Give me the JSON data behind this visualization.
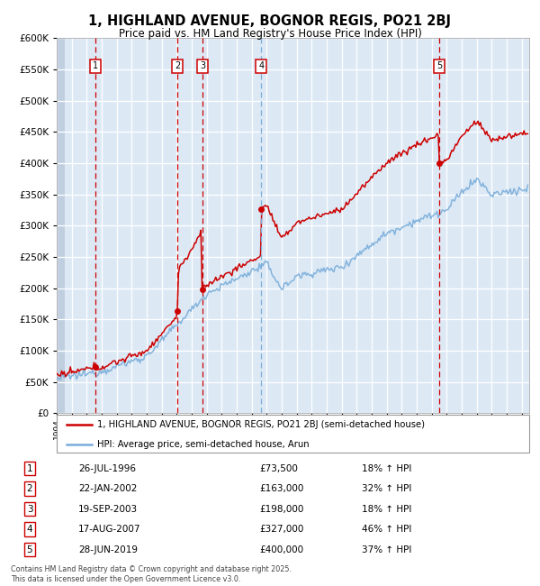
{
  "title_line1": "1, HIGHLAND AVENUE, BOGNOR REGIS, PO21 2BJ",
  "title_line2": "Price paid vs. HM Land Registry's House Price Index (HPI)",
  "sale_points": [
    {
      "num": 1,
      "year": 1996.57,
      "price": 73500,
      "dash_style": "red"
    },
    {
      "num": 2,
      "year": 2002.06,
      "price": 163000,
      "dash_style": "red"
    },
    {
      "num": 3,
      "year": 2003.72,
      "price": 198000,
      "dash_style": "red"
    },
    {
      "num": 4,
      "year": 2007.63,
      "price": 327000,
      "dash_style": "blue"
    },
    {
      "num": 5,
      "year": 2019.49,
      "price": 400000,
      "dash_style": "red"
    }
  ],
  "label_row": [
    {
      "num": 1,
      "date": "26-JUL-1996",
      "price": "£73,500",
      "hpi": "18% ↑ HPI"
    },
    {
      "num": 2,
      "date": "22-JAN-2002",
      "price": "£163,000",
      "hpi": "32% ↑ HPI"
    },
    {
      "num": 3,
      "date": "19-SEP-2003",
      "price": "£198,000",
      "hpi": "18% ↑ HPI"
    },
    {
      "num": 4,
      "date": "17-AUG-2007",
      "price": "£327,000",
      "hpi": "46% ↑ HPI"
    },
    {
      "num": 5,
      "date": "28-JUN-2019",
      "price": "£400,000",
      "hpi": "37% ↑ HPI"
    }
  ],
  "legend_line1": "1, HIGHLAND AVENUE, BOGNOR REGIS, PO21 2BJ (semi-detached house)",
  "legend_line2": "HPI: Average price, semi-detached house, Arun",
  "footnote": "Contains HM Land Registry data © Crown copyright and database right 2025.\nThis data is licensed under the Open Government Licence v3.0.",
  "xmin": 1994.0,
  "xmax": 2025.5,
  "ymin": 0,
  "ymax": 600000,
  "yticks": [
    0,
    50000,
    100000,
    150000,
    200000,
    250000,
    300000,
    350000,
    400000,
    450000,
    500000,
    550000,
    600000
  ],
  "ytick_labels": [
    "£0",
    "£50K",
    "£100K",
    "£150K",
    "£200K",
    "£250K",
    "£300K",
    "£350K",
    "£400K",
    "£450K",
    "£500K",
    "£550K",
    "£600K"
  ],
  "sale_color": "#cc0000",
  "hpi_color": "#7aadda",
  "plot_bg_color": "#dce9f5",
  "hatch_left_color": "#c0cfdf"
}
